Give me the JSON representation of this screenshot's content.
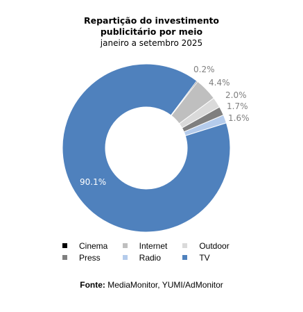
{
  "chart_data": {
    "type": "pie",
    "style": "donut",
    "title": "Repartição do investimento publicitário por meio",
    "title_lines": [
      "Repartição do investimento",
      "publicitário por meio"
    ],
    "subtitle": "janeiro a setembro 2025",
    "categories": [
      "Cinema",
      "Internet",
      "Outdoor",
      "Press",
      "Radio",
      "TV"
    ],
    "values": [
      0.2,
      4.4,
      2.0,
      1.7,
      1.6,
      90.1
    ],
    "labels": [
      "0.2%",
      "4.4%",
      "2.0%",
      "1.7%",
      "1.6%",
      "90.1%"
    ],
    "colors": [
      "#000000",
      "#bfbfbf",
      "#dadada",
      "#7f7f7f",
      "#b4cbeb",
      "#4f81bd"
    ],
    "label_colors": [
      "#7f7f7f",
      "#7f7f7f",
      "#7f7f7f",
      "#7f7f7f",
      "#7f7f7f",
      "#ffffff"
    ],
    "legend": {
      "rows": [
        [
          "Cinema",
          "Internet",
          "Outdoor"
        ],
        [
          "Press",
          "Radio",
          "TV"
        ]
      ],
      "placement": "bottom"
    },
    "source_label": "Fonte:",
    "source_text": "MediaMonitor, YUMI/AdMonitor"
  }
}
